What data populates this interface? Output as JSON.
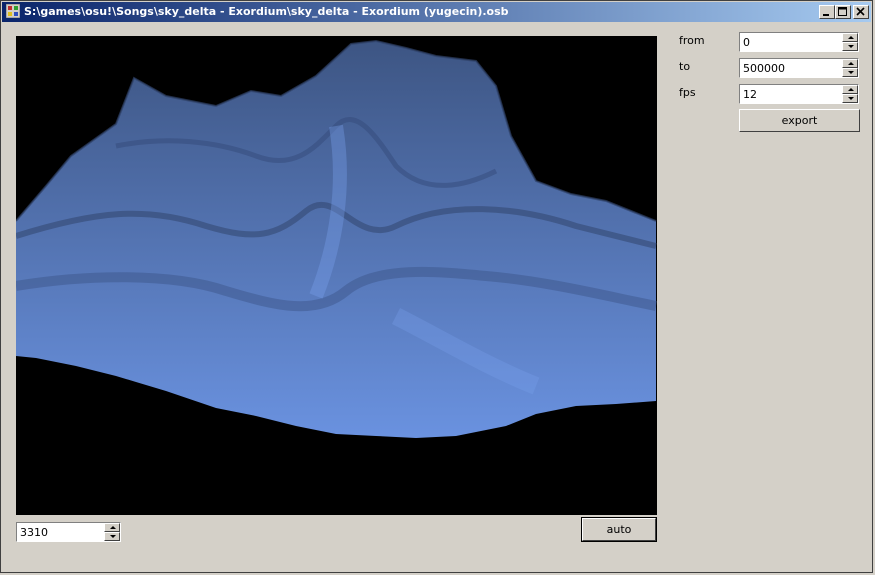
{
  "window": {
    "title": "S:\\games\\osu!\\Songs\\sky_delta - Exordium\\sky_delta - Exordium (yugecin).osb",
    "minimize_icon": "minimize-icon",
    "maximize_icon": "maximize-icon",
    "close_icon": "close-icon"
  },
  "controls": {
    "from_label": "from",
    "from_value": "0",
    "to_label": "to",
    "to_value": "500000",
    "fps_label": "fps",
    "fps_value": "12",
    "export_label": "export"
  },
  "bottom": {
    "time_value": "3310",
    "auto_label": "auto"
  },
  "colors": {
    "surface_light": "#6f98e8",
    "surface_dark": "#3a4f7a",
    "background": "#000000"
  }
}
